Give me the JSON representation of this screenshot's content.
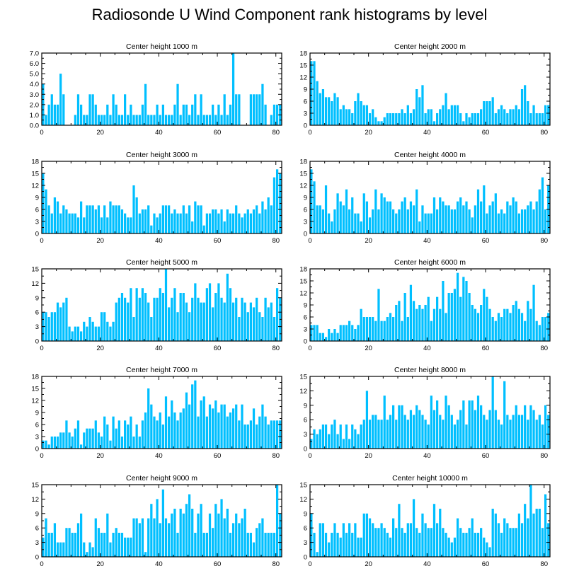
{
  "title": "Radiosonde U Wind Component rank histograms by level",
  "colors": {
    "bar": "#00bfff",
    "axis": "#000000",
    "background": "#ffffff"
  },
  "chart_data": [
    {
      "type": "bar",
      "title": "Center height 1000 m",
      "xlim": [
        0,
        82
      ],
      "xticks": [
        0,
        20,
        40,
        60,
        80
      ],
      "ylim": [
        0,
        7
      ],
      "yticks": [
        0,
        1,
        2,
        3,
        4,
        5,
        6,
        7
      ],
      "ytick_labels": [
        "0.0",
        "1.0",
        "2.0",
        "3.0",
        "4.0",
        "5.0",
        "6.0",
        "7.0"
      ],
      "values": [
        4,
        1,
        2,
        3,
        2,
        2,
        5,
        3,
        0,
        0,
        0,
        1,
        3,
        2,
        1,
        1,
        3,
        3,
        2,
        1,
        1,
        1,
        2,
        1,
        3,
        2,
        1,
        1,
        3,
        1,
        2,
        1,
        1,
        1,
        2,
        4,
        1,
        1,
        1,
        2,
        1,
        2,
        1,
        1,
        1,
        2,
        4,
        1,
        2,
        2,
        1,
        2,
        3,
        1,
        3,
        1,
        1,
        1,
        2,
        1,
        2,
        1,
        3,
        1,
        2,
        7,
        3,
        3,
        0,
        0,
        0,
        3,
        3,
        3,
        3,
        4,
        2,
        0,
        1,
        2,
        2,
        2
      ]
    },
    {
      "type": "bar",
      "title": "Center height 2000 m",
      "xlim": [
        0,
        82
      ],
      "xticks": [
        0,
        20,
        40,
        60,
        80
      ],
      "ylim": [
        0,
        18
      ],
      "yticks": [
        0,
        3,
        6,
        9,
        12,
        15,
        18
      ],
      "ytick_labels": [
        "0",
        "3",
        "6",
        "9",
        "12",
        "15",
        "18"
      ],
      "values": [
        16,
        16,
        11,
        8,
        9,
        7,
        7,
        6,
        8,
        7,
        4,
        5,
        4,
        4,
        3,
        6,
        8,
        6,
        5,
        5,
        3,
        4,
        2,
        1,
        1,
        2,
        3,
        3,
        3,
        3,
        3,
        4,
        3,
        5,
        3,
        4,
        9,
        7,
        10,
        3,
        4,
        4,
        1,
        3,
        4,
        5,
        8,
        4,
        5,
        5,
        5,
        3,
        1,
        3,
        2,
        3,
        3,
        3,
        4,
        6,
        6,
        6,
        7,
        3,
        4,
        5,
        4,
        3,
        4,
        4,
        5,
        4,
        9,
        10,
        6,
        3,
        5,
        3,
        3,
        3,
        5,
        5
      ]
    },
    {
      "type": "bar",
      "title": "Center height 3000 m",
      "xlim": [
        0,
        82
      ],
      "xticks": [
        0,
        20,
        40,
        60,
        80
      ],
      "ylim": [
        0,
        18
      ],
      "yticks": [
        0,
        3,
        6,
        9,
        12,
        15,
        18
      ],
      "ytick_labels": [
        "0",
        "3",
        "6",
        "9",
        "12",
        "15",
        "18"
      ],
      "values": [
        15,
        11,
        7,
        5,
        9,
        8,
        5,
        7,
        6,
        5,
        5,
        5,
        4,
        8,
        4,
        7,
        7,
        7,
        6,
        7,
        4,
        7,
        4,
        8,
        7,
        7,
        7,
        6,
        5,
        4,
        4,
        12,
        9,
        5,
        6,
        6,
        7,
        2,
        5,
        4,
        5,
        7,
        7,
        7,
        5,
        6,
        5,
        5,
        7,
        5,
        7,
        3,
        8,
        7,
        7,
        2,
        5,
        5,
        6,
        6,
        5,
        6,
        3,
        6,
        5,
        5,
        7,
        5,
        4,
        5,
        6,
        5,
        6,
        7,
        5,
        8,
        6,
        9,
        7,
        14,
        16,
        15
      ]
    },
    {
      "type": "bar",
      "title": "Center height 4000 m",
      "xlim": [
        0,
        82
      ],
      "xticks": [
        0,
        20,
        40,
        60,
        80
      ],
      "ylim": [
        0,
        18
      ],
      "yticks": [
        0,
        3,
        6,
        9,
        12,
        15,
        18
      ],
      "ytick_labels": [
        "0",
        "3",
        "6",
        "9",
        "12",
        "15",
        "18"
      ],
      "values": [
        16,
        13,
        7,
        7,
        6,
        12,
        5,
        3,
        6,
        10,
        8,
        7,
        11,
        6,
        9,
        5,
        5,
        3,
        10,
        8,
        4,
        6,
        11,
        6,
        10,
        9,
        8,
        8,
        6,
        5,
        6,
        8,
        9,
        6,
        8,
        7,
        11,
        3,
        7,
        5,
        5,
        5,
        9,
        6,
        9,
        8,
        7,
        7,
        6,
        6,
        8,
        9,
        7,
        8,
        6,
        4,
        7,
        11,
        8,
        12,
        5,
        7,
        8,
        10,
        5,
        6,
        5,
        8,
        7,
        9,
        8,
        5,
        6,
        6,
        7,
        8,
        6,
        8,
        11,
        14,
        6,
        12
      ]
    },
    {
      "type": "bar",
      "title": "Center height 5000 m",
      "xlim": [
        0,
        82
      ],
      "xticks": [
        0,
        20,
        40,
        60,
        80
      ],
      "ylim": [
        0,
        15
      ],
      "yticks": [
        0,
        3,
        6,
        9,
        12,
        15
      ],
      "ytick_labels": [
        "0",
        "3",
        "6",
        "9",
        "12",
        "15"
      ],
      "values": [
        6,
        6,
        5,
        6,
        6,
        8,
        7,
        8,
        9,
        3,
        2,
        3,
        3,
        2,
        4,
        3,
        5,
        4,
        3,
        3,
        6,
        6,
        4,
        3,
        4,
        8,
        9,
        10,
        9,
        8,
        11,
        5,
        11,
        9,
        11,
        10,
        8,
        5,
        9,
        9,
        11,
        10,
        15,
        7,
        9,
        11,
        6,
        10,
        10,
        8,
        6,
        9,
        12,
        9,
        8,
        8,
        11,
        12,
        7,
        10,
        12,
        9,
        8,
        14,
        11,
        8,
        9,
        5,
        9,
        8,
        6,
        8,
        7,
        9,
        6,
        5,
        9,
        7,
        8,
        5,
        11,
        9
      ]
    },
    {
      "type": "bar",
      "title": "Center height 6000 m",
      "xlim": [
        0,
        82
      ],
      "xticks": [
        0,
        20,
        40,
        60,
        80
      ],
      "ylim": [
        0,
        18
      ],
      "yticks": [
        0,
        3,
        6,
        9,
        12,
        15,
        18
      ],
      "ytick_labels": [
        "0",
        "3",
        "6",
        "9",
        "12",
        "15",
        "18"
      ],
      "values": [
        4,
        4,
        4,
        2,
        2,
        1,
        3,
        2,
        3,
        2,
        4,
        4,
        4,
        5,
        4,
        3,
        4,
        8,
        6,
        6,
        6,
        6,
        5,
        13,
        5,
        5,
        6,
        7,
        6,
        9,
        10,
        5,
        12,
        6,
        14,
        10,
        8,
        9,
        8,
        9,
        11,
        5,
        8,
        11,
        8,
        15,
        7,
        12,
        12,
        13,
        17,
        11,
        16,
        15,
        12,
        9,
        8,
        7,
        9,
        13,
        11,
        8,
        6,
        5,
        7,
        6,
        8,
        8,
        7,
        9,
        10,
        8,
        7,
        5,
        10,
        8,
        14,
        5,
        4,
        6,
        6,
        7
      ]
    },
    {
      "type": "bar",
      "title": "Center height 7000 m",
      "xlim": [
        0,
        82
      ],
      "xticks": [
        0,
        20,
        40,
        60,
        80
      ],
      "ylim": [
        0,
        18
      ],
      "yticks": [
        0,
        3,
        6,
        9,
        12,
        15,
        18
      ],
      "ytick_labels": [
        "0",
        "3",
        "6",
        "9",
        "12",
        "15",
        "18"
      ],
      "values": [
        2,
        2,
        1,
        3,
        3,
        3,
        4,
        4,
        7,
        4,
        3,
        5,
        7,
        1,
        4,
        5,
        5,
        5,
        7,
        4,
        3,
        8,
        6,
        2,
        8,
        5,
        7,
        3,
        7,
        6,
        8,
        3,
        6,
        3,
        7,
        9,
        15,
        11,
        8,
        7,
        9,
        6,
        13,
        8,
        12,
        9,
        7,
        9,
        10,
        14,
        11,
        16,
        17,
        8,
        12,
        13,
        8,
        11,
        10,
        12,
        9,
        11,
        11,
        8,
        9,
        10,
        11,
        7,
        11,
        6,
        6,
        7,
        10,
        6,
        8,
        11,
        8,
        6,
        7,
        7,
        7,
        7
      ]
    },
    {
      "type": "bar",
      "title": "Center height 8000 m",
      "xlim": [
        0,
        82
      ],
      "xticks": [
        0,
        20,
        40,
        60,
        80
      ],
      "ylim": [
        0,
        15
      ],
      "yticks": [
        0,
        3,
        6,
        9,
        12,
        15
      ],
      "ytick_labels": [
        "0",
        "3",
        "6",
        "9",
        "12",
        "15"
      ],
      "values": [
        2,
        4,
        3,
        4,
        5,
        5,
        3,
        5,
        6,
        3,
        5,
        2,
        5,
        2,
        5,
        4,
        3,
        5,
        6,
        12,
        6,
        7,
        7,
        6,
        6,
        11,
        6,
        7,
        9,
        6,
        9,
        9,
        7,
        6,
        8,
        7,
        9,
        8,
        7,
        6,
        5,
        11,
        8,
        10,
        7,
        6,
        11,
        9,
        7,
        5,
        6,
        8,
        10,
        5,
        10,
        10,
        8,
        11,
        9,
        7,
        6,
        8,
        15,
        8,
        6,
        5,
        14,
        7,
        6,
        7,
        9,
        7,
        7,
        9,
        6,
        9,
        8,
        6,
        7,
        5,
        9,
        7
      ]
    },
    {
      "type": "bar",
      "title": "Center height 9000 m",
      "xlim": [
        0,
        82
      ],
      "xticks": [
        0,
        20,
        40,
        60,
        80
      ],
      "ylim": [
        0,
        15
      ],
      "yticks": [
        0,
        3,
        6,
        9,
        12,
        15
      ],
      "ytick_labels": [
        "0",
        "3",
        "6",
        "9",
        "12",
        "15"
      ],
      "values": [
        4,
        8,
        5,
        5,
        7,
        3,
        3,
        3,
        6,
        6,
        5,
        5,
        7,
        9,
        3,
        1,
        3,
        2,
        8,
        6,
        5,
        5,
        9,
        3,
        5,
        6,
        5,
        5,
        4,
        4,
        4,
        8,
        8,
        7,
        8,
        1,
        8,
        11,
        8,
        12,
        7,
        14,
        8,
        7,
        9,
        10,
        5,
        10,
        9,
        11,
        13,
        10,
        5,
        9,
        11,
        5,
        5,
        9,
        6,
        11,
        9,
        12,
        8,
        10,
        5,
        7,
        9,
        7,
        8,
        10,
        5,
        5,
        3,
        6,
        7,
        8,
        5,
        5,
        5,
        5,
        15,
        9
      ]
    },
    {
      "type": "bar",
      "title": "Center height 10000 m",
      "xlim": [
        0,
        82
      ],
      "xticks": [
        0,
        20,
        40,
        60,
        80
      ],
      "ylim": [
        0,
        15
      ],
      "yticks": [
        0,
        3,
        6,
        9,
        12,
        15
      ],
      "ytick_labels": [
        "0",
        "3",
        "6",
        "9",
        "12",
        "15"
      ],
      "values": [
        9,
        5,
        1,
        7,
        7,
        5,
        3,
        5,
        7,
        5,
        4,
        7,
        5,
        7,
        5,
        7,
        4,
        4,
        9,
        9,
        8,
        7,
        6,
        6,
        7,
        6,
        5,
        4,
        8,
        6,
        11,
        6,
        5,
        7,
        7,
        12,
        6,
        5,
        9,
        7,
        6,
        6,
        11,
        7,
        10,
        6,
        5,
        4,
        3,
        4,
        8,
        6,
        5,
        5,
        6,
        8,
        5,
        5,
        6,
        4,
        3,
        2,
        10,
        9,
        7,
        5,
        8,
        7,
        6,
        6,
        6,
        9,
        7,
        11,
        8,
        15,
        9,
        10,
        10,
        6,
        13,
        7
      ]
    }
  ]
}
